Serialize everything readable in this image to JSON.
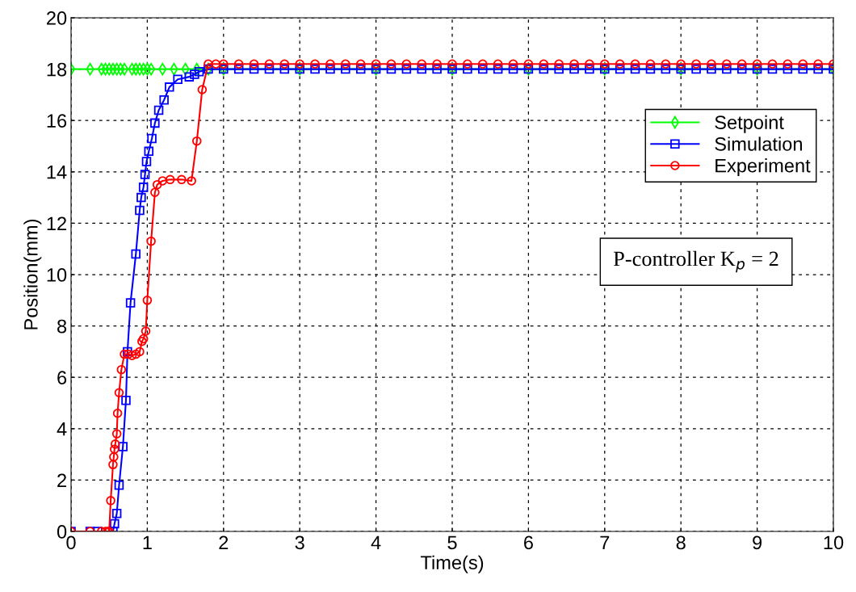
{
  "chart_data": {
    "type": "line",
    "xlabel": "Time(s)",
    "ylabel": "Position(mm)",
    "xlim": [
      0,
      10
    ],
    "ylim": [
      0,
      20
    ],
    "xticks": [
      0,
      1,
      2,
      3,
      4,
      5,
      6,
      7,
      8,
      9,
      10
    ],
    "yticks": [
      0,
      2,
      4,
      6,
      8,
      10,
      12,
      14,
      16,
      18,
      20
    ],
    "grid": true,
    "legend": "top right",
    "line_style": "solid",
    "annotations": [
      "P-controller K$_{p}$ = 2"
    ],
    "series": [
      {
        "name": "Setpoint",
        "color": "#00ff00",
        "marker": "diamond",
        "x": [
          0,
          0.25,
          0.4,
          0.45,
          0.5,
          0.55,
          0.6,
          0.65,
          0.7,
          0.8,
          0.85,
          0.9,
          0.95,
          1.0,
          1.05,
          1.2,
          1.35,
          1.5,
          1.65,
          1.8,
          2.0,
          3,
          4,
          5,
          6,
          7,
          8,
          9,
          10
        ],
        "values": [
          18,
          18,
          18,
          18,
          18,
          18,
          18,
          18,
          18,
          18,
          18,
          18,
          18,
          18,
          18,
          18,
          18,
          18,
          18,
          18,
          18,
          18,
          18,
          18,
          18,
          18,
          18,
          18,
          18
        ]
      },
      {
        "name": "Simulation",
        "color": "#0000ff",
        "marker": "square",
        "x": [
          0,
          0.25,
          0.35,
          0.55,
          0.57,
          0.6,
          0.63,
          0.68,
          0.72,
          0.74,
          0.78,
          0.85,
          0.9,
          0.92,
          0.95,
          0.97,
          0.99,
          1.02,
          1.06,
          1.1,
          1.15,
          1.22,
          1.29,
          1.4,
          1.55,
          1.62,
          1.68,
          1.8,
          2.0,
          2.2,
          2.4,
          2.6,
          2.8,
          3.0,
          3.2,
          3.4,
          3.6,
          3.8,
          4.0,
          4.2,
          4.4,
          4.6,
          4.8,
          5.0,
          5.2,
          5.4,
          5.6,
          5.8,
          6.0,
          6.2,
          6.4,
          6.6,
          6.8,
          7.0,
          7.2,
          7.4,
          7.6,
          7.8,
          8.0,
          8.2,
          8.4,
          8.6,
          8.8,
          9.0,
          9.2,
          9.4,
          9.6,
          9.8,
          10.0
        ],
        "values": [
          0,
          0,
          0,
          0,
          0.3,
          0.7,
          1.8,
          3.3,
          5.1,
          7.0,
          8.9,
          10.8,
          12.5,
          13.0,
          13.4,
          13.9,
          14.4,
          14.8,
          15.3,
          15.9,
          16.4,
          16.8,
          17.3,
          17.6,
          17.7,
          17.8,
          17.9,
          18,
          18,
          18,
          18,
          18,
          18,
          18,
          18,
          18,
          18,
          18,
          18,
          18,
          18,
          18,
          18,
          18,
          18,
          18,
          18,
          18,
          18,
          18,
          18,
          18,
          18,
          18,
          18,
          18,
          18,
          18,
          18,
          18,
          18,
          18,
          18,
          18,
          18,
          18,
          18,
          18,
          18
        ]
      },
      {
        "name": "Experiment",
        "color": "#ff0000",
        "marker": "circle",
        "x": [
          0,
          0.25,
          0.4,
          0.45,
          0.48,
          0.5,
          0.52,
          0.55,
          0.56,
          0.57,
          0.58,
          0.6,
          0.61,
          0.63,
          0.66,
          0.7,
          0.75,
          0.8,
          0.85,
          0.9,
          0.93,
          0.95,
          0.98,
          1.0,
          1.05,
          1.1,
          1.13,
          1.2,
          1.3,
          1.45,
          1.58,
          1.65,
          1.72,
          1.8,
          1.9,
          2.0,
          2.2,
          2.4,
          2.6,
          2.8,
          3.0,
          3.2,
          3.4,
          3.6,
          3.8,
          4.0,
          4.2,
          4.4,
          4.6,
          4.8,
          5.0,
          5.2,
          5.4,
          5.6,
          5.8,
          6.0,
          6.2,
          6.4,
          6.6,
          6.8,
          7.0,
          7.2,
          7.4,
          7.6,
          7.8,
          8.0,
          8.2,
          8.4,
          8.6,
          8.8,
          9.0,
          9.2,
          9.4,
          9.6,
          9.8,
          10.0
        ],
        "values": [
          0,
          0,
          0,
          0,
          0,
          0,
          1.2,
          2.6,
          2.9,
          3.2,
          3.4,
          3.8,
          4.6,
          5.4,
          6.3,
          6.9,
          6.9,
          6.85,
          6.9,
          7.0,
          7.4,
          7.5,
          7.8,
          9.0,
          11.3,
          13.2,
          13.5,
          13.65,
          13.7,
          13.7,
          13.65,
          15.2,
          17.2,
          18.2,
          18.2,
          18.2,
          18.2,
          18.2,
          18.2,
          18.2,
          18.2,
          18.2,
          18.2,
          18.2,
          18.2,
          18.2,
          18.2,
          18.2,
          18.2,
          18.2,
          18.2,
          18.2,
          18.2,
          18.2,
          18.2,
          18.2,
          18.2,
          18.2,
          18.2,
          18.2,
          18.2,
          18.2,
          18.2,
          18.2,
          18.2,
          18.2,
          18.2,
          18.2,
          18.2,
          18.2,
          18.2,
          18.2,
          18.2,
          18.2,
          18.2,
          18.2
        ]
      }
    ]
  }
}
